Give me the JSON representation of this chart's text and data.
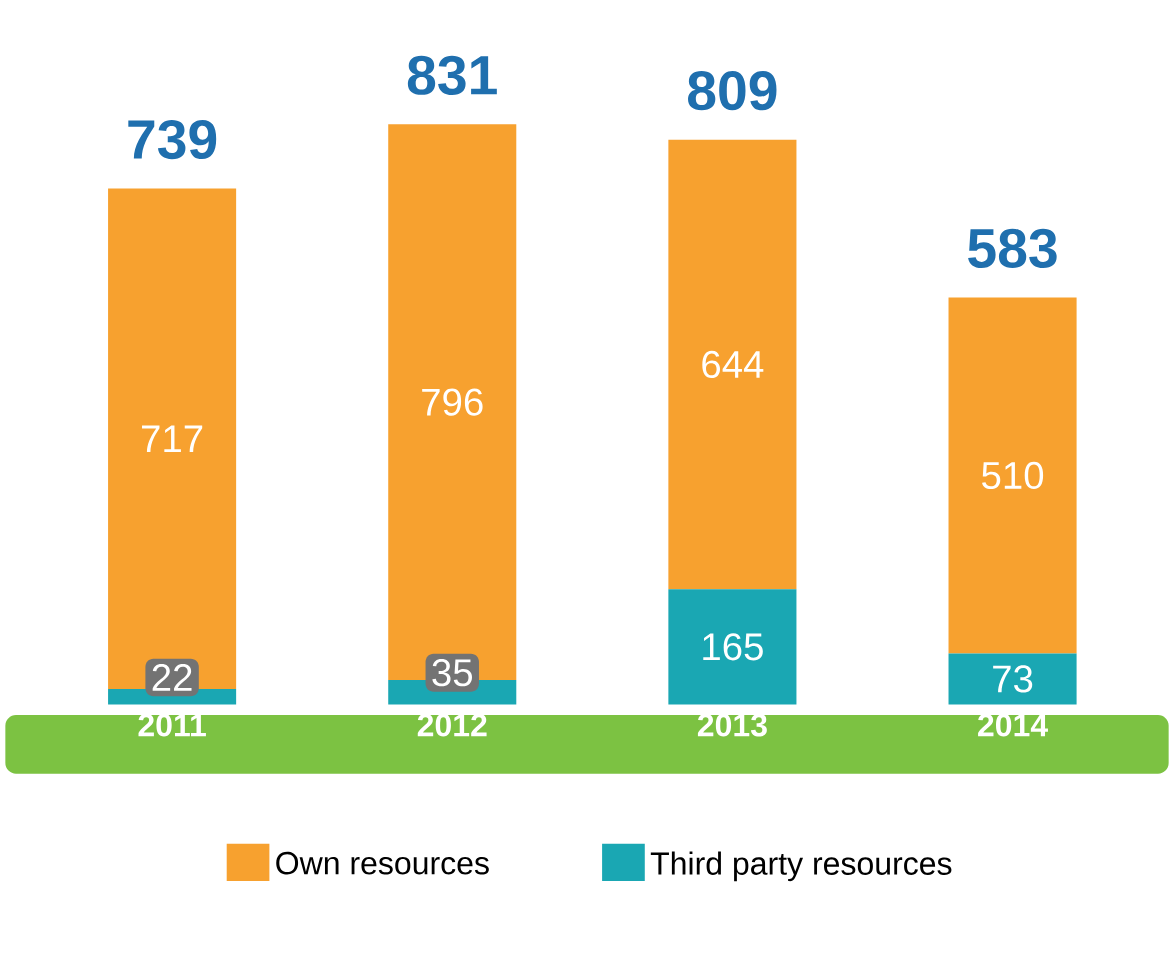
{
  "chart_data": {
    "type": "bar",
    "stacked": true,
    "categories": [
      "2011",
      "2012",
      "2013",
      "2014"
    ],
    "series": [
      {
        "name": "Third party resources",
        "color": "#1aa7b3",
        "values": [
          22,
          35,
          165,
          73
        ]
      },
      {
        "name": "Own resources",
        "color": "#f7a12f",
        "values": [
          717,
          796,
          644,
          510
        ]
      }
    ],
    "totals": [
      "739",
      "831",
      "809",
      "583"
    ],
    "data_labels": true,
    "legend": "bottom"
  }
}
